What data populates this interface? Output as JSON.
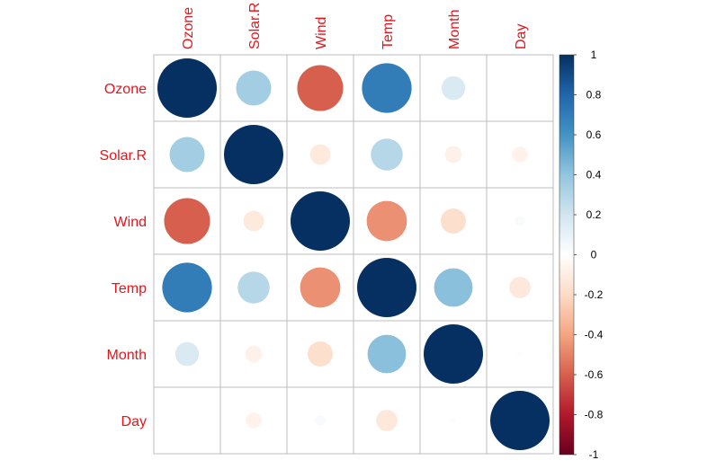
{
  "chart_data": {
    "type": "heatmap",
    "style": "corrplot-circle",
    "variables": [
      "Ozone",
      "Solar.R",
      "Wind",
      "Temp",
      "Month",
      "Day"
    ],
    "matrix": [
      [
        1.0,
        0.35,
        -0.6,
        0.7,
        0.16,
        0.0
      ],
      [
        0.35,
        1.0,
        -0.12,
        0.29,
        -0.08,
        -0.07
      ],
      [
        -0.6,
        -0.12,
        1.0,
        -0.46,
        -0.18,
        0.03
      ],
      [
        0.7,
        0.29,
        -0.46,
        1.0,
        0.42,
        -0.13
      ],
      [
        0.16,
        -0.08,
        -0.18,
        0.42,
        1.0,
        -0.01
      ],
      [
        0.0,
        -0.07,
        0.03,
        -0.13,
        -0.01,
        1.0
      ]
    ],
    "colorbar": {
      "range": [
        -1,
        1
      ],
      "ticks": [
        "1",
        "0.8",
        "0.6",
        "0.4",
        "0.2",
        "0",
        "-0.2",
        "-0.4",
        "-0.6",
        "-0.8",
        "-1"
      ],
      "stops": [
        "#67001F",
        "#B2182B",
        "#D6604D",
        "#F4A582",
        "#FDDBC7",
        "#FFFFFF",
        "#D1E5F0",
        "#92C5DE",
        "#4393C3",
        "#2166AC",
        "#053061"
      ]
    },
    "label_color": "#E8141B",
    "grid": true
  }
}
